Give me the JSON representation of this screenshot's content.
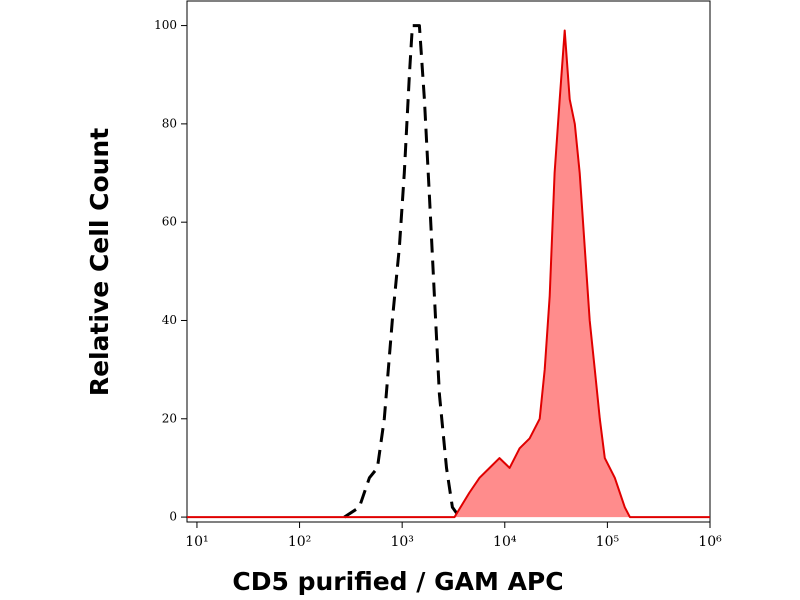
{
  "chart_data": {
    "type": "histogram-overlay",
    "xlabel": "CD5 purified / GAM APC",
    "ylabel": "Relative Cell Count",
    "xscale": "log",
    "xlim": [
      8,
      1000000
    ],
    "ylim": [
      -1,
      105
    ],
    "xticks": [
      {
        "value": 10,
        "label": "10¹"
      },
      {
        "value": 100,
        "label": "10²"
      },
      {
        "value": 1000,
        "label": "10³"
      },
      {
        "value": 10000,
        "label": "10⁴"
      },
      {
        "value": 100000,
        "label": "10⁵"
      },
      {
        "value": 1000000,
        "label": "10⁶"
      }
    ],
    "yticks": [
      0,
      20,
      40,
      60,
      80,
      100
    ],
    "series": [
      {
        "color": "#000000",
        "style": "dashed",
        "fill": null,
        "x": [
          273,
          382,
          479,
          573,
          670,
          802,
          940,
          1050,
          1175,
          1259,
          1473,
          1648,
          1845,
          2062,
          2307,
          2704,
          3090,
          3622
        ],
        "values": [
          0,
          2,
          8,
          10,
          20,
          40,
          55,
          70,
          90,
          100,
          100,
          85,
          65,
          45,
          25,
          10,
          2,
          0
        ]
      },
      {
        "color": "#e00000",
        "style": "solid",
        "fill": "#ff8c8c",
        "x": [
          8,
          3236,
          4529,
          5675,
          7112,
          8892,
          11140,
          13960,
          17460,
          21880,
          24490,
          27400,
          30620,
          34280,
          38370,
          42950,
          48080,
          53700,
          60120,
          67300,
          75340,
          84330,
          94400,
          118000,
          147900,
          165600,
          1000000
        ],
        "values": [
          0,
          0,
          5,
          8,
          10,
          12,
          10,
          14,
          16,
          20,
          30,
          45,
          70,
          85,
          99,
          85,
          80,
          70,
          55,
          40,
          30,
          20,
          12,
          8,
          2,
          0,
          0
        ]
      }
    ]
  }
}
